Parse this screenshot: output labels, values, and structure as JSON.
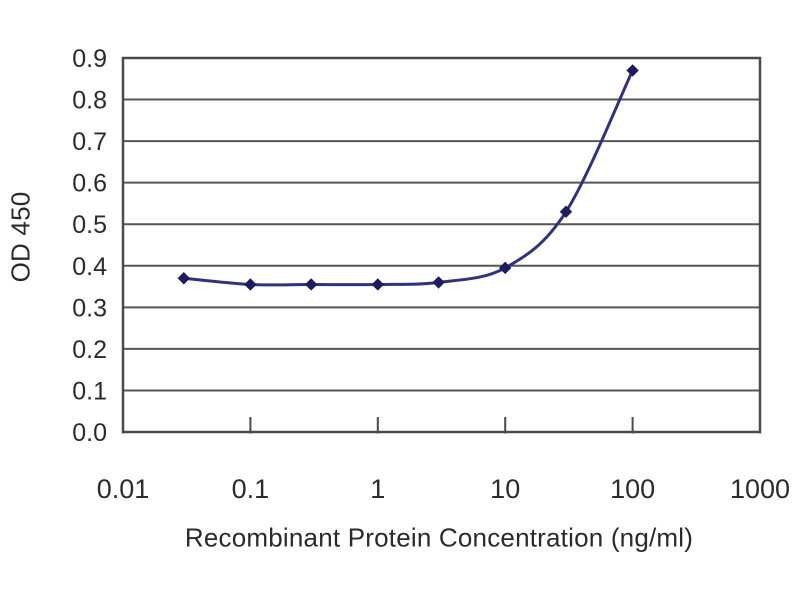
{
  "page": {
    "background_color": "#ffffff"
  },
  "chart_data": {
    "type": "line",
    "title": "",
    "xlabel": "Recombinant Protein Concentration (ng/ml)",
    "ylabel": "OD 450",
    "x_scale": "log",
    "xlim": [
      0.01,
      1000
    ],
    "ylim": [
      0,
      0.9
    ],
    "x_ticks": [
      0.01,
      0.1,
      1,
      10,
      100,
      1000
    ],
    "x_tick_labels": [
      "0.01",
      "0.1",
      "1",
      "10",
      "100",
      "1000"
    ],
    "y_ticks": [
      0,
      0.1,
      0.2,
      0.3,
      0.4,
      0.5,
      0.6,
      0.7,
      0.8,
      0.9
    ],
    "y_tick_labels": [
      "0.0",
      "0.1",
      "0.2",
      "0.3",
      "0.4",
      "0.5",
      "0.6",
      "0.7",
      "0.8",
      "0.9"
    ],
    "grid": "horizontal",
    "legend": "none",
    "series": [
      {
        "name": "OD 450",
        "marker": "diamond",
        "smooth": true,
        "x": [
          0.03,
          0.1,
          0.3,
          1,
          3,
          10,
          30,
          100
        ],
        "y": [
          0.37,
          0.355,
          0.355,
          0.355,
          0.36,
          0.395,
          0.53,
          0.87
        ]
      }
    ],
    "colors": {
      "line": "#32327c",
      "marker": "#1d1d5f",
      "grid": "#565656",
      "frame": "#4a4a4a",
      "text": "#2b2b2b"
    }
  }
}
